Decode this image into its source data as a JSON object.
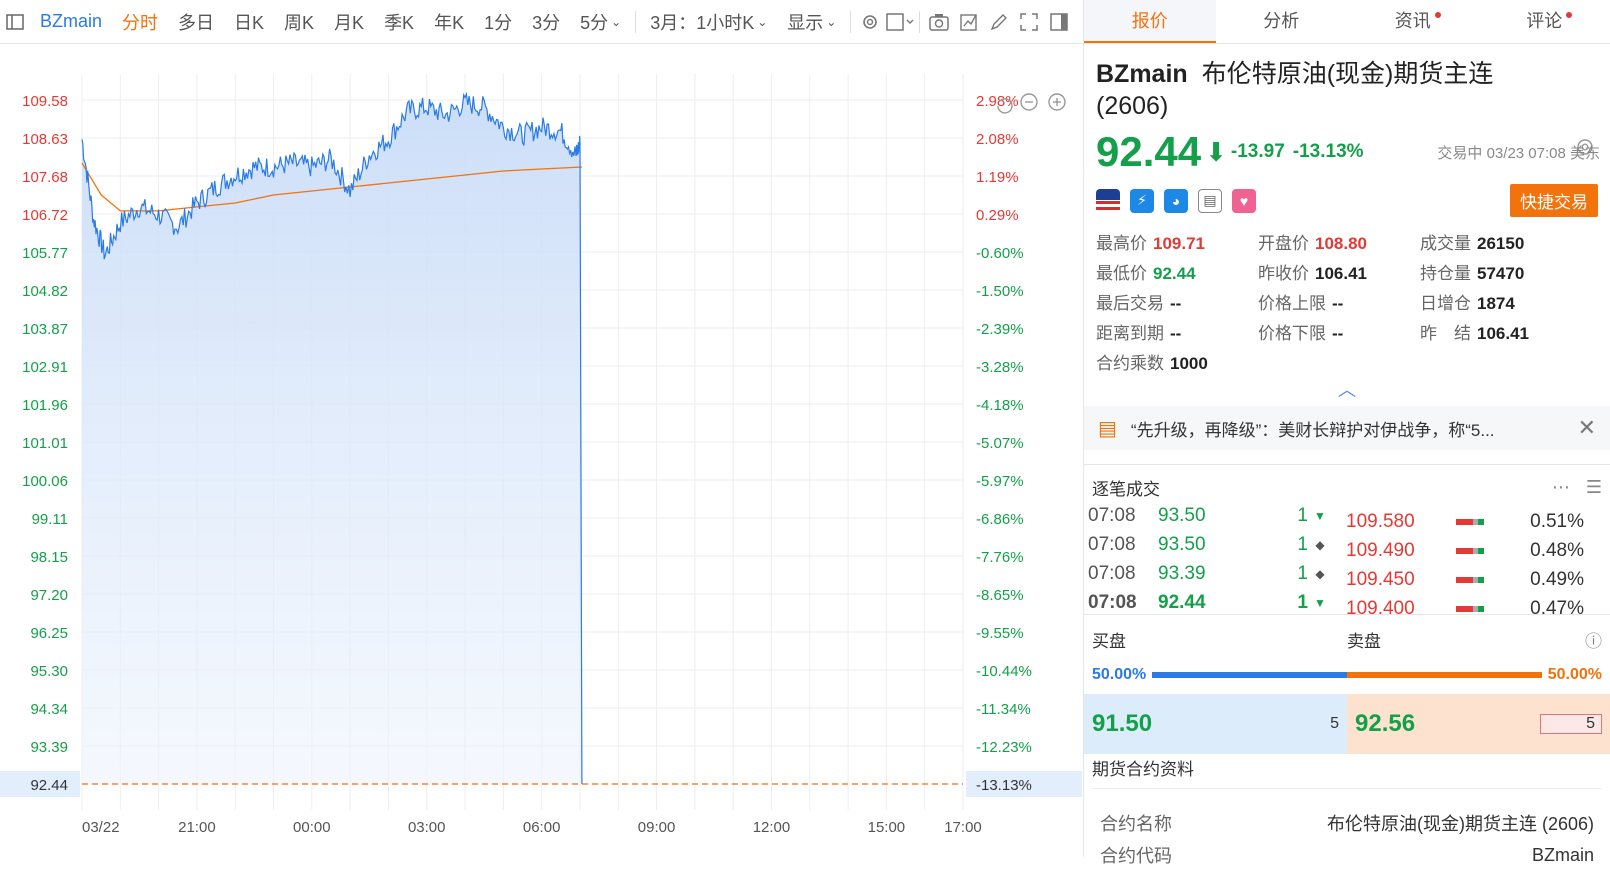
{
  "toolbar": {
    "symbol": "BZmain",
    "items": [
      "分时",
      "多日",
      "日K",
      "周K",
      "月K",
      "季K",
      "年K",
      "1分",
      "3分",
      "5分",
      "3月：1小时K",
      "显示"
    ],
    "active": "分时"
  },
  "chart": {
    "ylim": [
      92.44,
      109.58
    ],
    "price_ticks": [
      "109.58",
      "108.63",
      "107.68",
      "106.72",
      "105.77",
      "104.82",
      "103.87",
      "102.91",
      "101.96",
      "101.01",
      "100.06",
      "99.11",
      "98.15",
      "97.20",
      "96.25",
      "95.30",
      "94.34",
      "93.39",
      "92.44"
    ],
    "pct_ticks": [
      "2.98%",
      "2.08%",
      "1.19%",
      "0.29%",
      "-0.60%",
      "-1.50%",
      "-2.39%",
      "-3.28%",
      "-4.18%",
      "-5.07%",
      "-5.97%",
      "-6.86%",
      "-7.76%",
      "-8.65%",
      "-9.55%",
      "-10.44%",
      "-11.34%",
      "-12.23%",
      "-13.13%"
    ],
    "x_ticks": [
      "03/22",
      "21:00",
      "00:00",
      "03:00",
      "06:00",
      "09:00",
      "12:00",
      "15:00",
      "17:00"
    ],
    "last_price_label": "92.44",
    "last_pct_label": "-13.13%"
  },
  "chart_data": {
    "type": "line",
    "x_range_hours": [
      "18:00",
      "17:00"
    ],
    "series": [
      {
        "x": [
          0,
          0.3,
          0.6,
          1.0,
          1.5,
          2,
          2.5,
          3,
          3.5,
          4,
          4.5,
          5,
          5.5,
          6,
          6.5,
          7,
          7.5,
          8,
          8.5,
          9,
          9.5,
          10,
          10.5,
          11,
          11.5,
          12,
          12.5,
          12.9,
          13.0,
          13.05
        ],
        "y": [
          108.6,
          106.6,
          105.7,
          106.5,
          106.9,
          106.7,
          106.4,
          107.0,
          107.4,
          107.7,
          107.9,
          107.9,
          108.0,
          107.9,
          108.1,
          107.3,
          108.2,
          108.6,
          109.3,
          109.4,
          109.2,
          109.5,
          109.4,
          108.9,
          108.7,
          108.9,
          108.8,
          108.2,
          108.5,
          92.44
        ]
      },
      {
        "x": [
          0,
          0.5,
          1,
          2,
          3,
          4,
          5,
          6,
          7,
          8,
          9,
          10,
          11,
          12,
          13.05
        ],
        "y": [
          108.0,
          107.2,
          106.8,
          106.8,
          106.9,
          107.0,
          107.2,
          107.3,
          107.4,
          107.5,
          107.6,
          107.7,
          107.8,
          107.85,
          107.9
        ]
      }
    ],
    "ylim": [
      92.44,
      109.58
    ],
    "prev_close": 106.41
  },
  "quote": {
    "tabs": [
      "报价",
      "分析",
      "资讯",
      "评论"
    ],
    "code": "BZmain",
    "name": "布伦特原油(现金)期货主连",
    "name2": "(2606)",
    "price": "92.44",
    "change": "-13.97",
    "change_pct": "-13.13%",
    "status": "交易中 03/23 07:08 美东",
    "quick_trade": "快捷交易",
    "stats": [
      {
        "k": "最高价",
        "v": "109.71",
        "c": "up"
      },
      {
        "k": "开盘价",
        "v": "108.80",
        "c": "up"
      },
      {
        "k": "成交量",
        "v": "26150",
        "c": ""
      },
      {
        "k": "最低价",
        "v": "92.44",
        "c": "dn"
      },
      {
        "k": "昨收价",
        "v": "106.41",
        "c": ""
      },
      {
        "k": "持仓量",
        "v": "57470",
        "c": ""
      },
      {
        "k": "最后交易",
        "v": "--",
        "c": ""
      },
      {
        "k": "价格上限",
        "v": "--",
        "c": ""
      },
      {
        "k": "日增仓",
        "v": "1874",
        "c": ""
      },
      {
        "k": "距离到期",
        "v": "--",
        "c": ""
      },
      {
        "k": "价格下限",
        "v": "--",
        "c": ""
      },
      {
        "k": "昨　结",
        "v": "106.41",
        "c": ""
      },
      {
        "k": "合约乘数",
        "v": "1000",
        "c": ""
      }
    ],
    "news": "“先升级，再降级”：美财长辩护对伊战争，称“5..."
  },
  "ticks": {
    "title": "逐笔成交",
    "rows": [
      {
        "t": "07:08",
        "p": "93.50",
        "v": "1",
        "m": "▼"
      },
      {
        "t": "07:08",
        "p": "93.50",
        "v": "1",
        "m": "◆"
      },
      {
        "t": "07:08",
        "p": "93.39",
        "v": "1",
        "m": "◆"
      },
      {
        "t": "07:08",
        "p": "92.44",
        "v": "1",
        "m": "▼"
      }
    ],
    "book": [
      {
        "p": "109.580",
        "pct": "0.51%"
      },
      {
        "p": "109.490",
        "pct": "0.48%"
      },
      {
        "p": "109.450",
        "pct": "0.49%"
      },
      {
        "p": "109.400",
        "pct": "0.47%"
      }
    ]
  },
  "bidask": {
    "buy_label": "买盘",
    "sell_label": "卖盘",
    "buy_pct": "50.00%",
    "sell_pct": "50.00%",
    "bid": "91.50",
    "bid_vol": "5",
    "ask": "92.56",
    "ask_vol": "5"
  },
  "contract": {
    "title": "期货合约资料",
    "rows": [
      {
        "k": "合约名称",
        "v": "布伦特原油(现金)期货主连 (2606)"
      },
      {
        "k": "合约代码",
        "v": "BZmain"
      }
    ]
  },
  "colors": {
    "accent": "#f2720c",
    "up": "#e53935",
    "down": "#14a04a",
    "line": "#2a7be4"
  }
}
